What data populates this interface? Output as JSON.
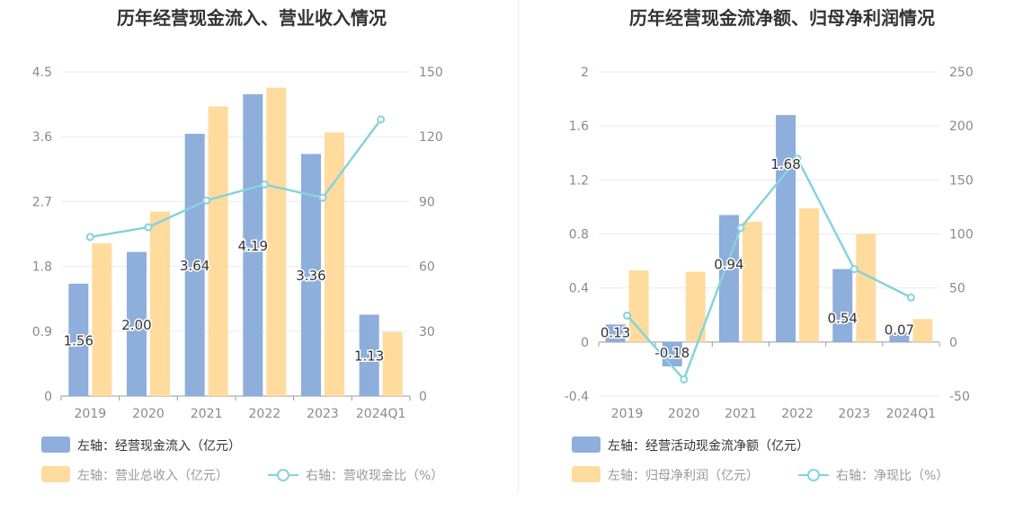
{
  "colors": {
    "bar_blue": "#8eaedc",
    "bar_orange": "#ffdb9e",
    "line": "#86d3dc",
    "grid": "#e6ebf5",
    "axis": "#9a9a9a"
  },
  "chart_data": [
    {
      "type": "bar",
      "title": "历年经营现金流入、营业收入情况",
      "categories": [
        "2019",
        "2020",
        "2021",
        "2022",
        "2023",
        "2024Q1"
      ],
      "left_axis": {
        "ylim": [
          0,
          4.5
        ],
        "ticks": [
          "0",
          "0.9",
          "1.8",
          "2.7",
          "3.6",
          "4.5"
        ]
      },
      "right_axis": {
        "ylim": [
          0,
          150
        ],
        "ticks": [
          "0",
          "30",
          "60",
          "90",
          "120",
          "150"
        ]
      },
      "series": [
        {
          "name": "左轴：经营现金流入（亿元）",
          "kind": "bar",
          "axis": "left",
          "color": "#8eaedc",
          "values": [
            1.56,
            2.0,
            3.64,
            4.19,
            3.36,
            1.13
          ],
          "labels": [
            "1.56",
            "2.00",
            "3.64",
            "4.19",
            "3.36",
            "1.13"
          ]
        },
        {
          "name": "左轴：营业总收入（亿元）",
          "kind": "bar",
          "axis": "left",
          "color": "#ffdb9e",
          "values": [
            2.12,
            2.56,
            4.02,
            4.28,
            3.66,
            0.89
          ]
        },
        {
          "name": "右轴：营收现金比（%）",
          "kind": "line",
          "axis": "right",
          "color": "#86d3dc",
          "values": [
            73.6,
            78.1,
            90.5,
            97.9,
            91.8,
            128
          ]
        }
      ],
      "legend": "bottom-left",
      "grid": true
    },
    {
      "type": "bar",
      "title": "历年经营现金流净额、归母净利润情况",
      "categories": [
        "2019",
        "2020",
        "2021",
        "2022",
        "2023",
        "2024Q1"
      ],
      "left_axis": {
        "ylim": [
          -0.4,
          2
        ],
        "ticks": [
          "-0.4",
          "0",
          "0.4",
          "0.8",
          "1.2",
          "1.6",
          "2"
        ]
      },
      "right_axis": {
        "ylim": [
          -50,
          250
        ],
        "ticks": [
          "-50",
          "0",
          "50",
          "100",
          "150",
          "200",
          "250"
        ]
      },
      "series": [
        {
          "name": "左轴：经营活动现金流净额（亿元）",
          "kind": "bar",
          "axis": "left",
          "color": "#8eaedc",
          "values": [
            0.13,
            -0.18,
            0.94,
            1.68,
            0.54,
            0.07
          ],
          "labels": [
            "0.13",
            "-0.18",
            "0.94",
            "1.68",
            "0.54",
            "0.07"
          ]
        },
        {
          "name": "左轴：归母净利润（亿元）",
          "kind": "bar",
          "axis": "left",
          "color": "#ffdb9e",
          "values": [
            0.53,
            0.52,
            0.89,
            0.99,
            0.8,
            0.17
          ]
        },
        {
          "name": "右轴：净现比（%）",
          "kind": "line",
          "axis": "right",
          "color": "#86d3dc",
          "values": [
            24.5,
            -34.6,
            105.6,
            169.7,
            67.5,
            41.2
          ]
        }
      ],
      "legend": "bottom-left",
      "grid": true
    }
  ]
}
